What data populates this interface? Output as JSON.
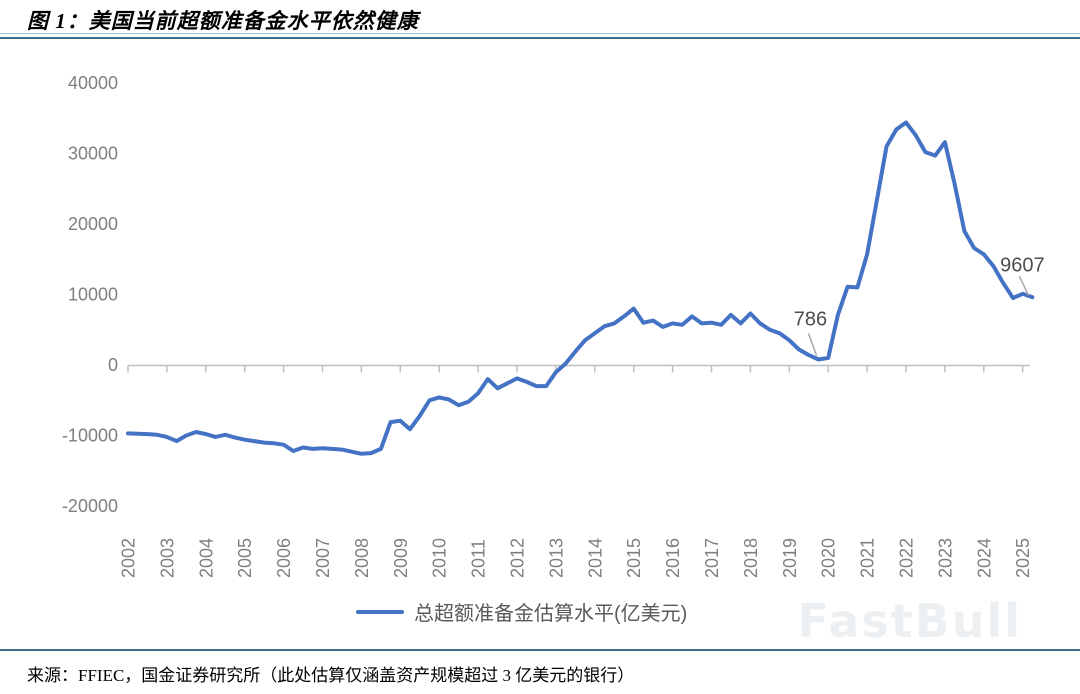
{
  "header": {
    "title": "图 1：美国当前超额准备金水平依然健康"
  },
  "footer": {
    "source": "来源：FFIEC，国金证券研究所（此处估算仅涵盖资产规模超过 3 亿美元的银行）"
  },
  "watermark": {
    "text": "FastBull"
  },
  "colors": {
    "line": "#4472c4",
    "axis": "#bfbfbf",
    "tick_label": "#7f7f7f",
    "annotation_text": "#4d4d4d",
    "leader_line": "#a6a6a6",
    "rule_dark": "#3f6d88",
    "rule_light": "#9cc3d5"
  },
  "chart_data": {
    "type": "line",
    "title": "美国当前超额准备金水平依然健康",
    "legend": [
      "总超额准备金估算水平(亿美元)"
    ],
    "legend_position": "bottom",
    "grid": false,
    "x_start_year": 2002,
    "frequency": "quarterly",
    "x_tick_labels": [
      "2002",
      "2003",
      "2004",
      "2005",
      "2006",
      "2007",
      "2008",
      "2009",
      "2010",
      "2011",
      "2012",
      "2013",
      "2014",
      "2015",
      "2016",
      "2017",
      "2018",
      "2019",
      "2020",
      "2021",
      "2022",
      "2023",
      "2024",
      "2025"
    ],
    "y_ticks": [
      40000,
      30000,
      20000,
      10000,
      0,
      -10000,
      -20000
    ],
    "ylim": [
      -20000,
      40000
    ],
    "values": [
      -9700,
      -9750,
      -9800,
      -9900,
      -10200,
      -10800,
      -10000,
      -9500,
      -9800,
      -10200,
      -9900,
      -10300,
      -10600,
      -10800,
      -11000,
      -11100,
      -11300,
      -12200,
      -11700,
      -11900,
      -11800,
      -11900,
      -12000,
      -12300,
      -12600,
      -12500,
      -11900,
      -8100,
      -7900,
      -9100,
      -7200,
      -5000,
      -4600,
      -4900,
      -5700,
      -5200,
      -4000,
      -2000,
      -3300,
      -2600,
      -1900,
      -2400,
      -3000,
      -3000,
      -1000,
      200,
      1900,
      3500,
      4500,
      5500,
      5900,
      6900,
      8000,
      6000,
      6300,
      5400,
      5900,
      5700,
      6900,
      5900,
      6000,
      5700,
      7100,
      5900,
      7300,
      5900,
      5000,
      4500,
      3500,
      2200,
      1400,
      786,
      1000,
      7100,
      11100,
      11000,
      15700,
      23300,
      31000,
      33400,
      34400,
      32600,
      30200,
      29700,
      31600,
      25700,
      19000,
      16600,
      15700,
      14000,
      11600,
      9500,
      10100,
      9607
    ],
    "annotations": [
      {
        "label": "786",
        "t": 2019.75,
        "value": 786
      },
      {
        "label": "9607",
        "t": 2025.25,
        "value": 9607
      }
    ]
  }
}
